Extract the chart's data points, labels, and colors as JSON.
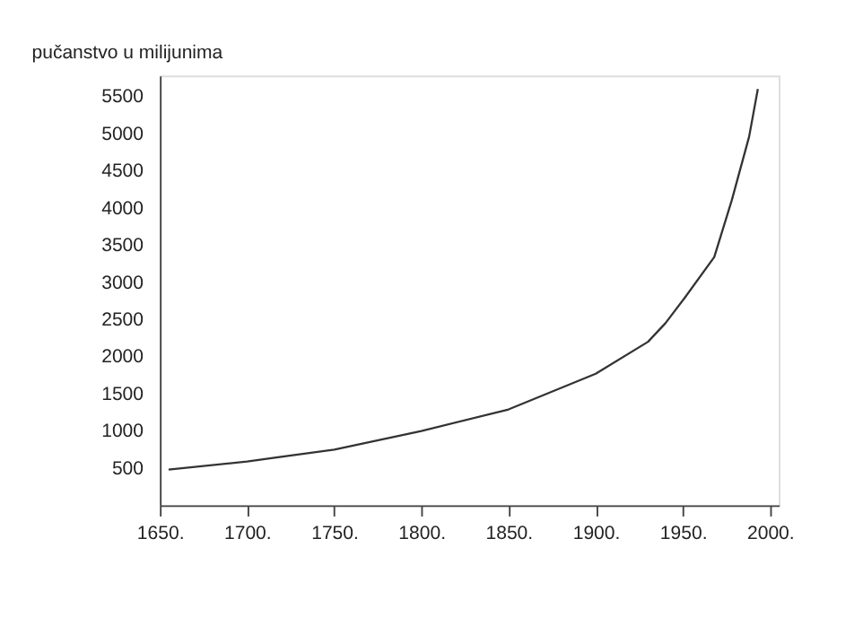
{
  "chart_data": {
    "type": "line",
    "ylabel": "pučanstvo u milijunima",
    "x": [
      1655,
      1700,
      1750,
      1800,
      1850,
      1900,
      1930,
      1940,
      1951,
      1968,
      1978,
      1988,
      1993
    ],
    "series": [
      {
        "color": "#333333",
        "values": [
          480,
          590,
          750,
          1000,
          1290,
          1770,
          2200,
          2450,
          2790,
          3340,
          4100,
          4960,
          5600
        ]
      }
    ],
    "xlim": [
      1650,
      2005
    ],
    "ylim": [
      0,
      5780
    ],
    "xticks": [
      {
        "value": 1650,
        "label": "1650."
      },
      {
        "value": 1700,
        "label": "1700."
      },
      {
        "value": 1750,
        "label": "1750."
      },
      {
        "value": 1800,
        "label": "1800."
      },
      {
        "value": 1850,
        "label": "1850."
      },
      {
        "value": 1900,
        "label": "1900."
      },
      {
        "value": 1950,
        "label": "1950."
      },
      {
        "value": 2000,
        "label": "2000."
      }
    ],
    "yticks": [
      500,
      1000,
      1500,
      2000,
      2500,
      3000,
      3500,
      4000,
      4500,
      5000,
      5500
    ],
    "grid": false,
    "marker": "none",
    "line_style": "solid"
  }
}
